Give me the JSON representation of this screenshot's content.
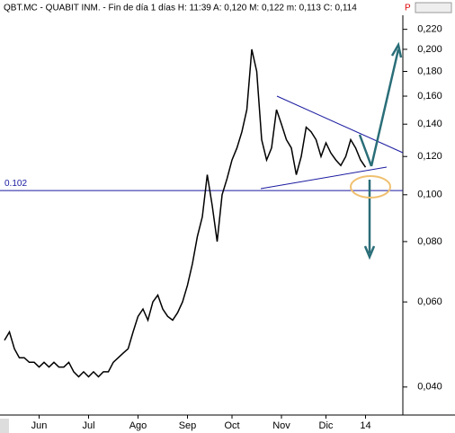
{
  "chart_data": {
    "type": "line",
    "title": "QBT.MC - QUABIT INM. - Fin de día 1 días  H: 11:39  A: 0,120  M: 0,122  m: 0,113  C: 0,114",
    "categories": [
      null,
      null,
      null,
      null,
      null,
      null,
      null,
      "Jun",
      null,
      null,
      null,
      null,
      null,
      null,
      null,
      null,
      null,
      "Jul",
      null,
      null,
      null,
      null,
      null,
      null,
      null,
      null,
      null,
      "Ago",
      null,
      null,
      null,
      null,
      null,
      null,
      null,
      null,
      null,
      "Sep",
      null,
      null,
      null,
      null,
      null,
      null,
      null,
      null,
      "Oct",
      null,
      null,
      null,
      null,
      null,
      null,
      null,
      null,
      null,
      "Nov",
      null,
      null,
      null,
      null,
      null,
      null,
      null,
      null,
      "Dic",
      null,
      null,
      null,
      null,
      null,
      null,
      null,
      "14",
      null,
      null,
      null,
      null,
      null,
      null,
      null
    ],
    "series": [
      {
        "name": "QBT.MC",
        "color": "#000000",
        "values": [
          0.05,
          0.052,
          0.048,
          0.046,
          0.046,
          0.045,
          0.045,
          0.044,
          0.045,
          0.044,
          0.045,
          0.044,
          0.044,
          0.045,
          0.043,
          0.042,
          0.043,
          0.042,
          0.043,
          0.042,
          0.043,
          0.043,
          0.045,
          0.046,
          0.047,
          0.048,
          0.052,
          0.056,
          0.058,
          0.055,
          0.06,
          0.062,
          0.058,
          0.056,
          0.055,
          0.057,
          0.06,
          0.065,
          0.072,
          0.082,
          0.09,
          0.11,
          0.095,
          0.08,
          0.1,
          0.108,
          0.118,
          0.125,
          0.135,
          0.15,
          0.2,
          0.18,
          0.13,
          0.118,
          0.125,
          0.15,
          0.14,
          0.13,
          0.125,
          0.11,
          0.12,
          0.138,
          0.135,
          0.13,
          0.12,
          0.128,
          0.122,
          0.118,
          0.115,
          0.12,
          0.13,
          0.125,
          0.118,
          0.114,
          null,
          null,
          null,
          null,
          null,
          null,
          null
        ]
      }
    ],
    "log_scale": true,
    "ylim": [
      0.035,
      0.253
    ],
    "yticks": [
      {
        "value": 0.04,
        "label": "0,040"
      },
      {
        "value": 0.06,
        "label": "0,060"
      },
      {
        "value": 0.08,
        "label": "0,080"
      },
      {
        "value": 0.1,
        "label": "0,100"
      },
      {
        "value": 0.12,
        "label": "0,120"
      },
      {
        "value": 0.14,
        "label": "0,140"
      },
      {
        "value": 0.16,
        "label": "0,160"
      },
      {
        "value": 0.18,
        "label": "0,180"
      },
      {
        "value": 0.2,
        "label": "0,200"
      },
      {
        "value": 0.22,
        "label": "0,220"
      }
    ],
    "reference_line": 0.102,
    "grid": false
  }
}
